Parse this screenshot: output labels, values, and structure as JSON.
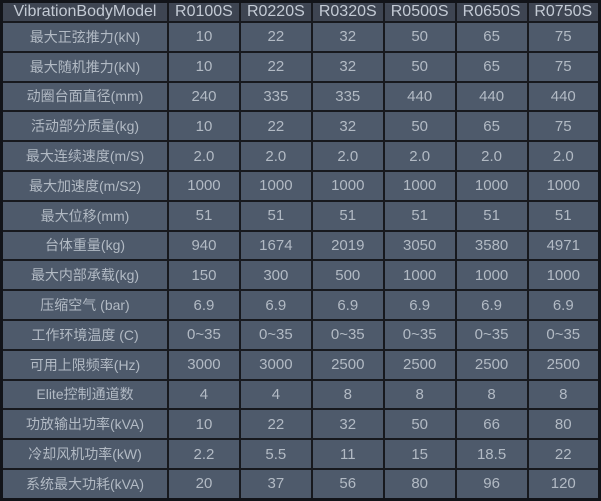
{
  "chart_data": {
    "type": "table",
    "title": "VibrationBodyModel",
    "columns": [
      "VibrationBodyModel",
      "R0100S",
      "R0220S",
      "R0320S",
      "R0500S",
      "R0650S",
      "R0750S"
    ],
    "rows": [
      {
        "label": "最大正弦推力(kN)",
        "values": [
          "10",
          "22",
          "32",
          "50",
          "65",
          "75"
        ]
      },
      {
        "label": "最大随机推力(kN)",
        "values": [
          "10",
          "22",
          "32",
          "50",
          "65",
          "75"
        ]
      },
      {
        "label": "动圈台面直径(mm)",
        "values": [
          "240",
          "335",
          "335",
          "440",
          "440",
          "440"
        ]
      },
      {
        "label": "活动部分质量(kg)",
        "values": [
          "10",
          "22",
          "32",
          "50",
          "65",
          "75"
        ]
      },
      {
        "label": "最大连续速度(m/S)",
        "values": [
          "2.0",
          "2.0",
          "2.0",
          "2.0",
          "2.0",
          "2.0"
        ]
      },
      {
        "label": "最大加速度(m/S2)",
        "values": [
          "1000",
          "1000",
          "1000",
          "1000",
          "1000",
          "1000"
        ]
      },
      {
        "label": "最大位移(mm)",
        "values": [
          "51",
          "51",
          "51",
          "51",
          "51",
          "51"
        ]
      },
      {
        "label": "台体重量(kg)",
        "values": [
          "940",
          "1674",
          "2019",
          "3050",
          "3580",
          "4971"
        ]
      },
      {
        "label": "最大内部承载(kg)",
        "values": [
          "150",
          "300",
          "500",
          "1000",
          "1000",
          "1000"
        ]
      },
      {
        "label": "压缩空气 (bar)",
        "values": [
          "6.9",
          "6.9",
          "6.9",
          "6.9",
          "6.9",
          "6.9"
        ]
      },
      {
        "label": "工作环境温度 (C)",
        "values": [
          "0~35",
          "0~35",
          "0~35",
          "0~35",
          "0~35",
          "0~35"
        ]
      },
      {
        "label": "可用上限频率(Hz)",
        "values": [
          "3000",
          "3000",
          "2500",
          "2500",
          "2500",
          "2500"
        ]
      },
      {
        "label": "Elite控制通道数",
        "values": [
          "4",
          "4",
          "8",
          "8",
          "8",
          "8"
        ]
      },
      {
        "label": "功放输出功率(kVA)",
        "values": [
          "10",
          "22",
          "32",
          "50",
          "66",
          "80"
        ]
      },
      {
        "label": "冷却风机功率(kW)",
        "values": [
          "2.2",
          "5.5",
          "11",
          "15",
          "18.5",
          "22"
        ]
      },
      {
        "label": "系统最大功耗(kVA)",
        "values": [
          "20",
          "37",
          "56",
          "80",
          "96",
          "120"
        ]
      }
    ],
    "layout": {
      "grid": true,
      "header_position": "top-row",
      "label_column_position": "left"
    },
    "colors": {
      "header_bg": "#3e4552",
      "cell_bg": "#4e5a6b",
      "border": "#17191e",
      "header_text": "#c3cad4",
      "cell_text": "#b2bac4"
    }
  }
}
